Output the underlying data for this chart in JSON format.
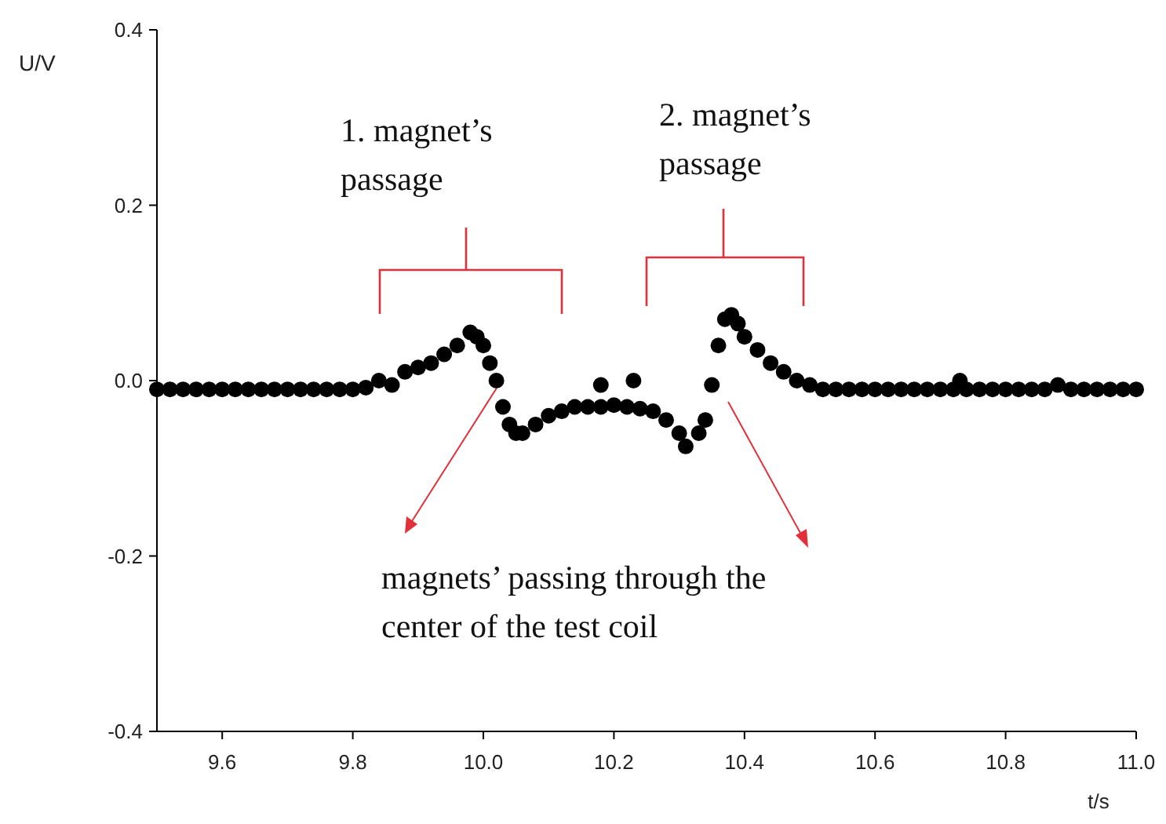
{
  "chart_data": {
    "type": "scatter",
    "xlabel": "t/s",
    "ylabel": "U/V",
    "xlim": [
      9.5,
      11.0
    ],
    "xticks": [
      9.6,
      9.8,
      {
        "value": 10.0,
        "label": "10.0"
      },
      10.2,
      10.4,
      10.6,
      10.8,
      {
        "value": 11.0,
        "label": "11.0"
      }
    ],
    "ylim": [
      -0.4,
      0.4
    ],
    "yticks": [
      {
        "value": -0.4,
        "label": "-0.4"
      },
      {
        "value": -0.2,
        "label": "-0.2"
      },
      {
        "value": 0,
        "label": "0.0"
      },
      0.2,
      0.4
    ],
    "grid": false,
    "marker": "circle",
    "series": [
      {
        "color": "#000000",
        "x": [
          9.5,
          9.52,
          9.54,
          9.56,
          9.58,
          9.6,
          9.62,
          9.64,
          9.66,
          9.68,
          9.7,
          9.72,
          9.74,
          9.76,
          9.78,
          9.8,
          9.82,
          9.84,
          9.86,
          9.88,
          9.9,
          9.92,
          9.94,
          9.96,
          9.98,
          9.99,
          10.0,
          10.01,
          10.02,
          10.03,
          10.04,
          10.05,
          10.06,
          10.08,
          10.1,
          10.12,
          10.14,
          10.16,
          10.18,
          10.18,
          10.2,
          10.22,
          10.23,
          10.24,
          10.26,
          10.28,
          10.3,
          10.31,
          10.33,
          10.34,
          10.35,
          10.36,
          10.37,
          10.38,
          10.39,
          10.4,
          10.42,
          10.44,
          10.46,
          10.48,
          10.5,
          10.52,
          10.54,
          10.56,
          10.58,
          10.6,
          10.62,
          10.64,
          10.66,
          10.68,
          10.7,
          10.72,
          10.73,
          10.74,
          10.76,
          10.78,
          10.8,
          10.82,
          10.84,
          10.86,
          10.88,
          10.9,
          10.92,
          10.94,
          10.96,
          10.98,
          11.0
        ],
        "values": [
          -0.01,
          -0.01,
          -0.01,
          -0.01,
          -0.01,
          -0.01,
          -0.01,
          -0.01,
          -0.01,
          -0.01,
          -0.01,
          -0.01,
          -0.01,
          -0.01,
          -0.01,
          -0.01,
          -0.008,
          0.0,
          -0.005,
          0.01,
          0.015,
          0.02,
          0.03,
          0.04,
          0.055,
          0.05,
          0.04,
          0.02,
          0.0,
          -0.03,
          -0.05,
          -0.06,
          -0.06,
          -0.05,
          -0.04,
          -0.035,
          -0.03,
          -0.03,
          -0.03,
          -0.005,
          -0.028,
          -0.03,
          0.0,
          -0.032,
          -0.035,
          -0.045,
          -0.06,
          -0.075,
          -0.06,
          -0.045,
          -0.005,
          0.04,
          0.07,
          0.075,
          0.065,
          0.05,
          0.035,
          0.02,
          0.01,
          0.0,
          -0.005,
          -0.01,
          -0.01,
          -0.01,
          -0.01,
          -0.01,
          -0.01,
          -0.01,
          -0.01,
          -0.01,
          -0.01,
          -0.01,
          0.0,
          -0.01,
          -0.01,
          -0.01,
          -0.01,
          -0.01,
          -0.01,
          -0.01,
          -0.005,
          -0.01,
          -0.01,
          -0.01,
          -0.01,
          -0.01,
          -0.01
        ]
      }
    ],
    "annotations": [
      "1. magnet’s\npassage",
      "2. magnet’s\npassage",
      {
        "text": "magnets’ passing through the\ncenter of the test coil",
        "x": 10.02,
        "y": 0.0
      }
    ]
  }
}
